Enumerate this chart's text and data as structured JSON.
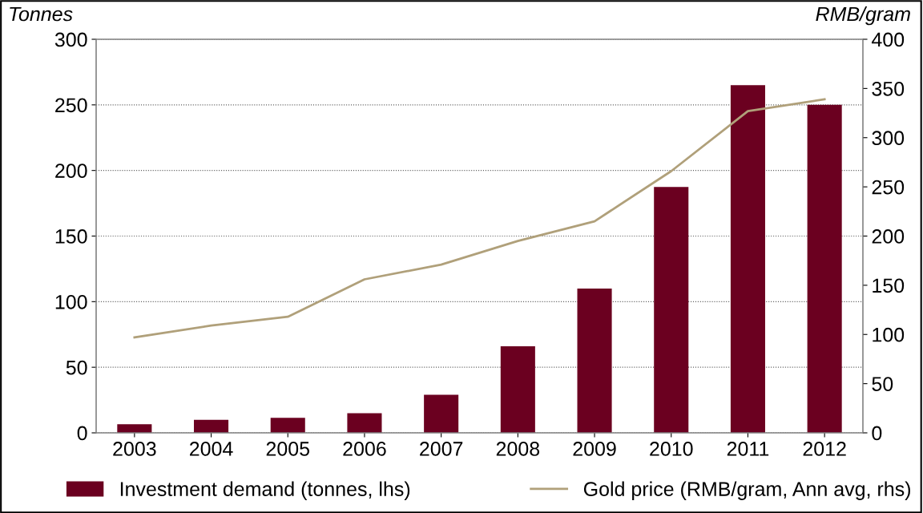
{
  "chart_data": {
    "type": "bar",
    "categories": [
      "2003",
      "2004",
      "2005",
      "2006",
      "2007",
      "2008",
      "2009",
      "2010",
      "2011",
      "2012"
    ],
    "series": [
      {
        "name": "Investment demand (tonnes, lhs)",
        "color": "#6b0020",
        "values": [
          6.5,
          10,
          11.5,
          15,
          29,
          66,
          110,
          187.5,
          265,
          250
        ]
      },
      {
        "name": "Gold price (RMB/gram, Ann avg, rhs)",
        "type": "line",
        "axis": "y2",
        "color": "#b0a07a",
        "values": [
          97,
          109,
          118,
          156,
          171,
          195,
          215,
          266,
          327,
          339
        ]
      }
    ],
    "ylabel": "Tonnes",
    "y2label": "RMB/gram",
    "ylim": [
      0,
      300
    ],
    "yticks": [
      0,
      50,
      100,
      150,
      200,
      250,
      300
    ],
    "y2lim": [
      0,
      400
    ],
    "y2ticks": [
      0,
      50,
      100,
      150,
      200,
      250,
      300,
      350,
      400
    ],
    "grid": "y",
    "legend": "bottom",
    "marker": "none",
    "line_style": "solid"
  }
}
